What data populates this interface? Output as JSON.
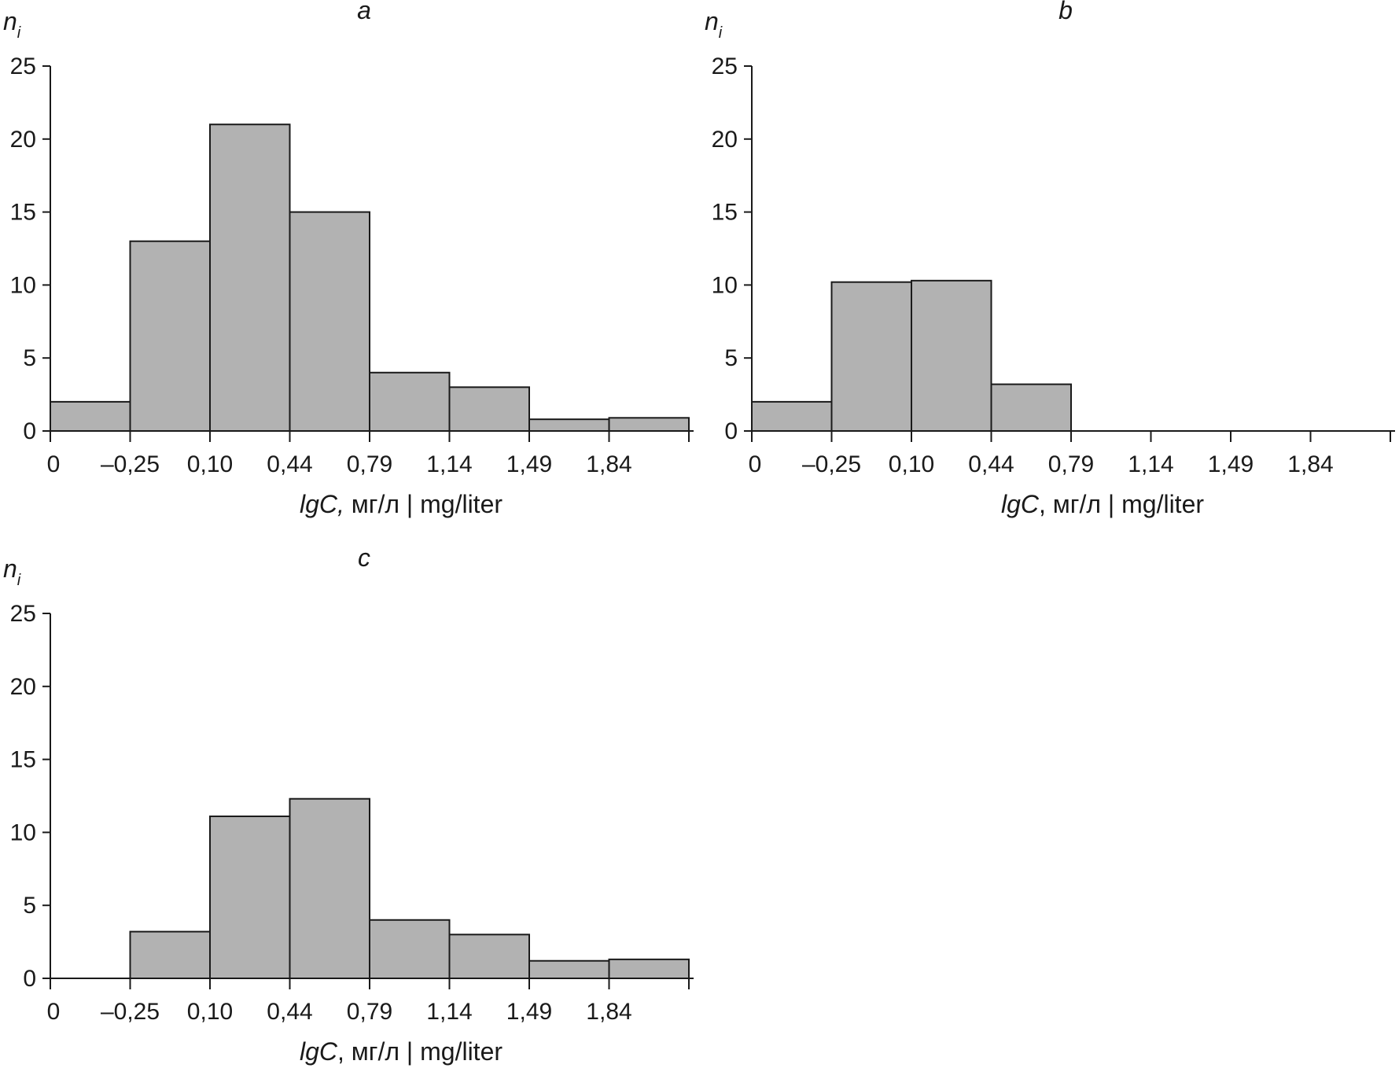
{
  "chart_data": [
    {
      "type": "bar",
      "title": "a",
      "ylabel": "n",
      "ylabel_sub": "i",
      "xlabel_italic": "lgC,",
      "xlabel_rest": " мг/л | mg/liter",
      "categories": [
        "0",
        "–0,25",
        "0,10",
        "0,44",
        "0,79",
        "1,14",
        "1,49",
        "1,84"
      ],
      "values": [
        2,
        13,
        21,
        15,
        4,
        3,
        0.8,
        0.9
      ],
      "yticks": [
        0,
        5,
        10,
        15,
        20,
        25
      ],
      "ylim": [
        0,
        25
      ]
    },
    {
      "type": "bar",
      "title": "b",
      "ylabel": "n",
      "ylabel_sub": "i",
      "xlabel_italic": "lgC",
      "xlabel_rest": ", мг/л | mg/liter",
      "categories": [
        "0",
        "–0,25",
        "0,10",
        "0,44",
        "0,79",
        "1,14",
        "1,49",
        "1,84"
      ],
      "values": [
        2,
        10.2,
        10.3,
        3.2,
        0,
        0,
        0,
        0
      ],
      "yticks": [
        0,
        5,
        10,
        15,
        20,
        25
      ],
      "ylim": [
        0,
        25
      ]
    },
    {
      "type": "bar",
      "title": "c",
      "ylabel": "n",
      "ylabel_sub": "i",
      "xlabel_italic": "lgC",
      "xlabel_rest": ", мг/л | mg/liter",
      "categories": [
        "0",
        "–0,25",
        "0,10",
        "0,44",
        "0,79",
        "1,14",
        "1,49",
        "1,84"
      ],
      "values": [
        0,
        3.2,
        11.1,
        12.3,
        4,
        3,
        1.2,
        1.3
      ],
      "yticks": [
        0,
        5,
        10,
        15,
        20,
        25
      ],
      "ylim": [
        0,
        25
      ]
    }
  ]
}
